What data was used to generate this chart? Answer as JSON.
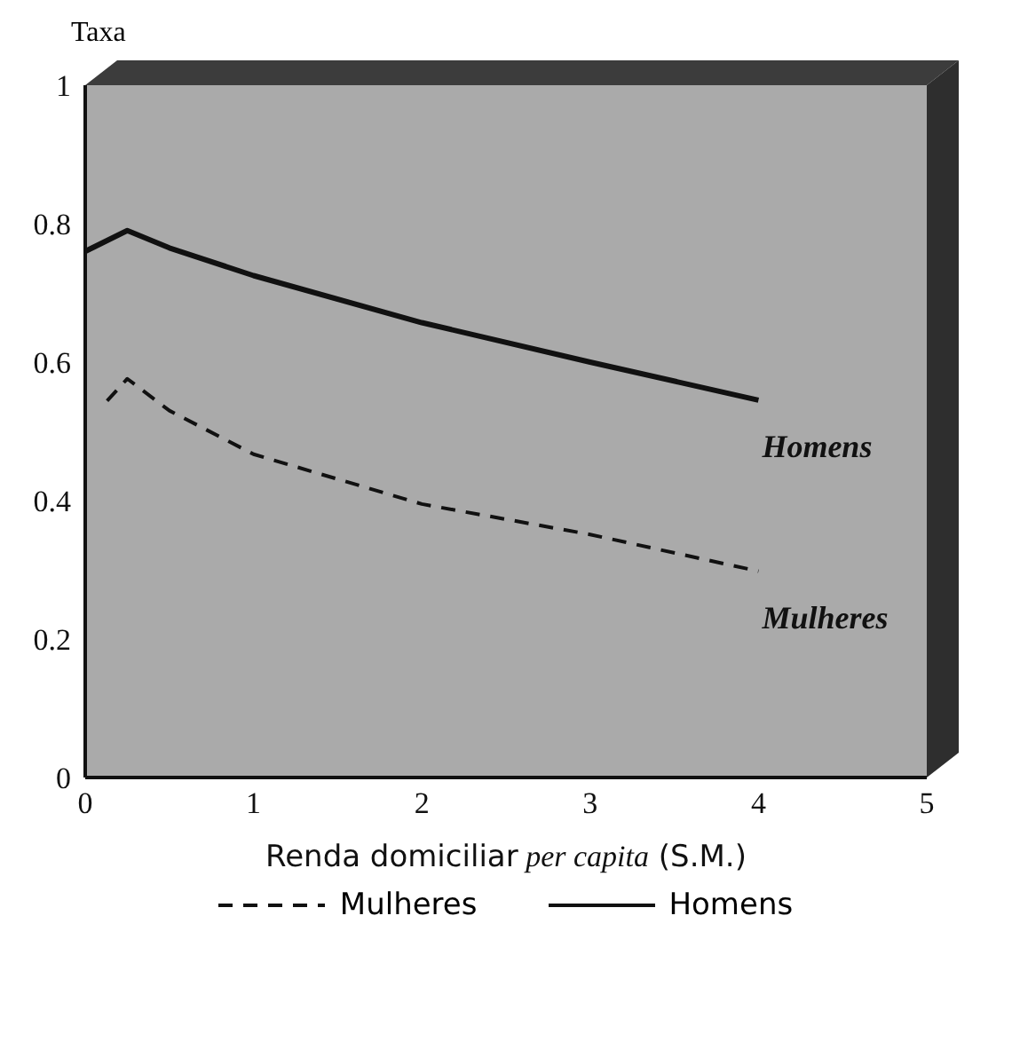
{
  "chart_data": {
    "type": "line",
    "ylabel": "Taxa",
    "xlabel": "Renda domiciliar per capita (S.M.)",
    "xlim": [
      0,
      5
    ],
    "xticks": [
      0,
      1,
      2,
      3,
      4,
      5
    ],
    "ylim": [
      0,
      1
    ],
    "yticks": [
      0,
      0.2,
      0.4,
      0.6,
      0.8,
      1
    ],
    "legend": "bottom",
    "marker": "none",
    "series": [
      {
        "name": "Mulheres",
        "color": "#111111",
        "line_style": "dashed",
        "x": [
          0.13,
          0.25,
          0.5,
          1,
          2,
          3,
          4
        ],
        "values": [
          0.544,
          0.576,
          0.53,
          0.467,
          0.395,
          0.351,
          0.298
        ]
      },
      {
        "name": "Homens",
        "color": "#111111",
        "line_style": "solid",
        "x": [
          0,
          0.25,
          0.5,
          1,
          2,
          3,
          4
        ],
        "values": [
          0.76,
          0.79,
          0.765,
          0.725,
          0.657,
          0.6,
          0.545
        ]
      }
    ]
  }
}
